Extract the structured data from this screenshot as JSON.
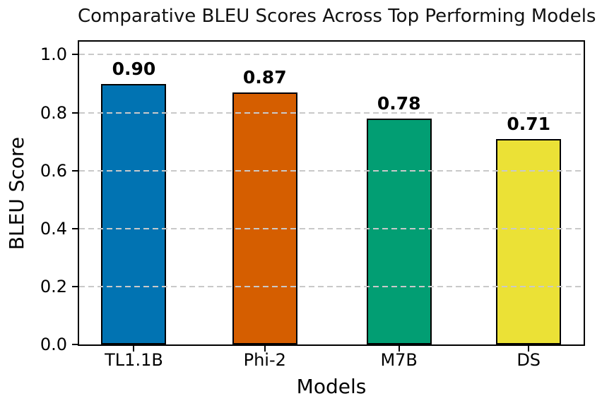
{
  "chart_data": {
    "type": "bar",
    "title": "Comparative BLEU Scores Across Top Performing Models",
    "xlabel": "Models",
    "ylabel": "BLEU Score",
    "categories": [
      "TL1.1B",
      "Phi-2",
      "M7B",
      "DS"
    ],
    "values": [
      0.9,
      0.87,
      0.78,
      0.71
    ],
    "bar_value_labels": [
      "0.90",
      "0.87",
      "0.78",
      "0.71"
    ],
    "bar_colors": [
      "#0173b2",
      "#d55e00",
      "#029e73",
      "#ebe136"
    ],
    "bar_edge_color": "#000000",
    "ylim": [
      0,
      1.045
    ],
    "ytick_values": [
      0.0,
      0.2,
      0.4,
      0.6,
      0.8,
      1.0
    ],
    "ytick_labels": [
      "0.0",
      "0.2",
      "0.4",
      "0.6",
      "0.8",
      "1.0"
    ],
    "grid": {
      "axis": "y",
      "style": "dashed",
      "color": "#c9c9c9",
      "above_bars": true
    },
    "legend_position": "none",
    "background_color": "#ffffff",
    "text_color": "#000000"
  }
}
